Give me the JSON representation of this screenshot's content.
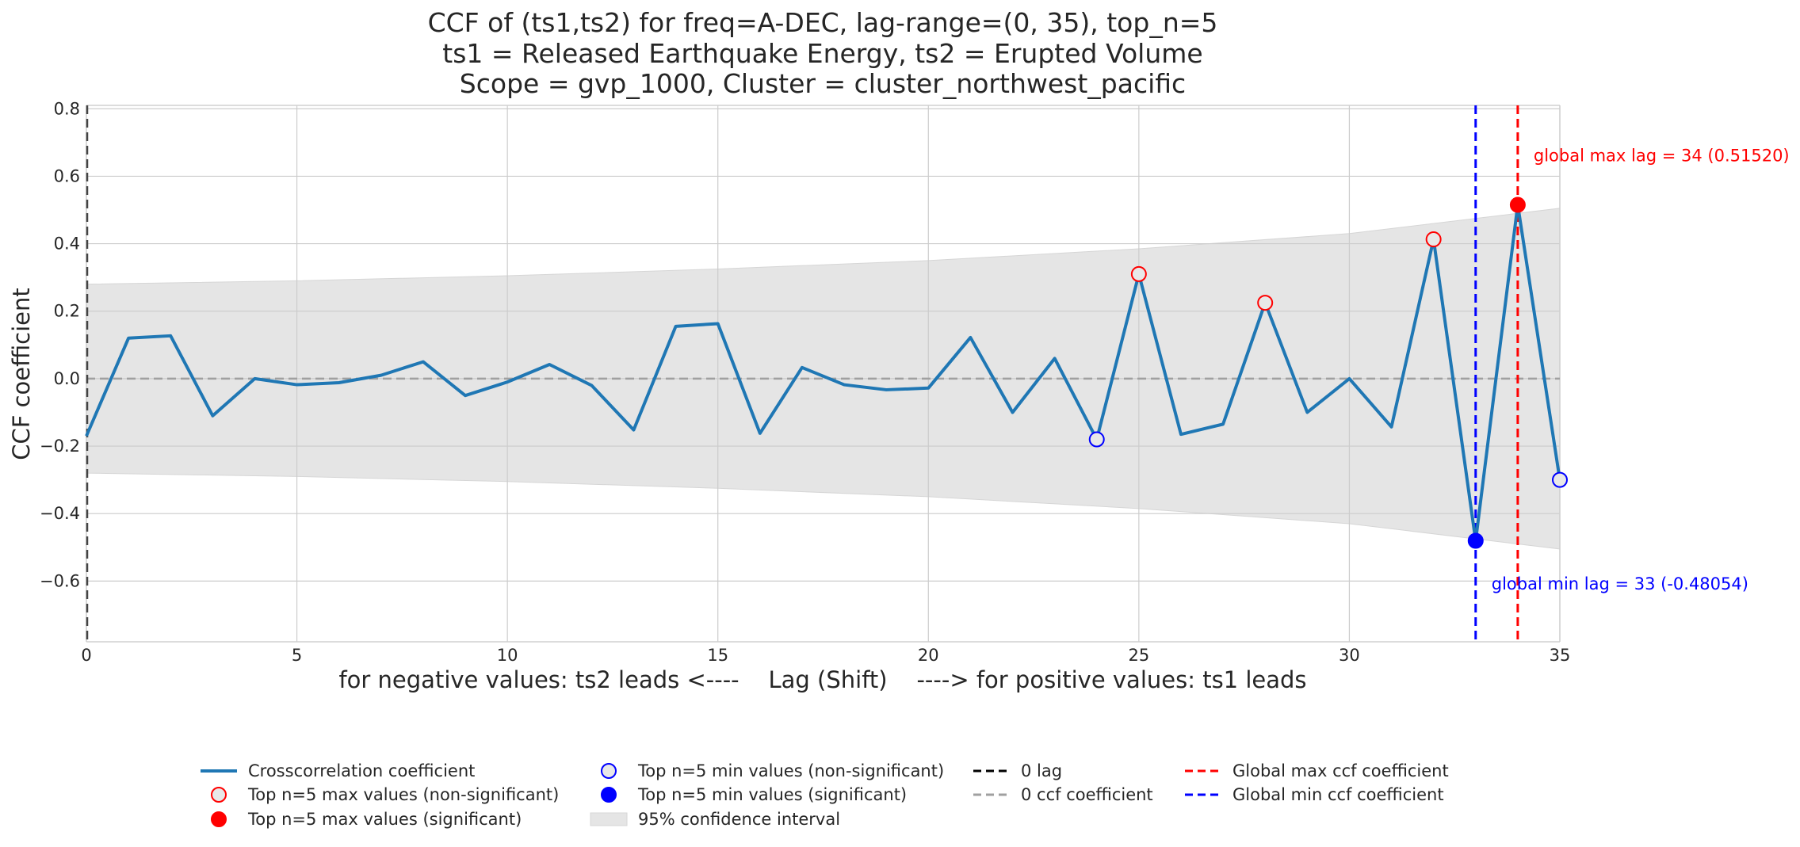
{
  "chart_data": {
    "type": "line",
    "title": [
      "CCF of (ts1,ts2) for freq=A-DEC, lag-range=(0, 35), top_n=5",
      "ts1 = Released Earthquake Energy, ts2 = Erupted Volume",
      "Scope = gvp_1000, Cluster = cluster_northwest_pacific"
    ],
    "xlabel": "for negative values: ts2 leads <----    Lag (Shift)    ----> for positive values: ts1 leads",
    "ylabel": "CCF coefficient",
    "xlim": [
      0,
      35
    ],
    "ylim": [
      -0.78,
      0.81
    ],
    "x_ticks": [
      0,
      5,
      10,
      15,
      20,
      25,
      30,
      35
    ],
    "x_tick_labels": [
      "0",
      "5",
      "10",
      "15",
      "20",
      "25",
      "30",
      "35"
    ],
    "y_ticks": [
      -0.6,
      -0.4,
      -0.2,
      0.0,
      0.2,
      0.4,
      0.6,
      0.8
    ],
    "y_tick_labels": [
      "−0.6",
      "−0.4",
      "−0.2",
      "0.0",
      "0.2",
      "0.4",
      "0.6",
      "0.8"
    ],
    "grid": true,
    "series": [
      {
        "name": "Crosscorrelation coefficient",
        "color": "#1f77b4",
        "x": [
          0,
          1,
          2,
          3,
          4,
          5,
          6,
          7,
          8,
          9,
          10,
          11,
          12,
          13,
          14,
          15,
          16,
          17,
          18,
          19,
          20,
          21,
          22,
          23,
          24,
          25,
          26,
          27,
          28,
          29,
          30,
          31,
          32,
          33,
          34,
          35
        ],
        "values": [
          -0.17,
          0.12,
          0.127,
          -0.11,
          0.0,
          -0.018,
          -0.012,
          0.01,
          0.05,
          -0.05,
          -0.01,
          0.042,
          -0.02,
          -0.152,
          0.155,
          0.163,
          -0.162,
          0.033,
          -0.018,
          -0.033,
          -0.028,
          0.122,
          -0.1,
          0.06,
          -0.18,
          0.31,
          -0.165,
          -0.135,
          0.225,
          -0.1,
          0.0,
          -0.143,
          0.413,
          -0.48054,
          0.5152,
          -0.3
        ]
      }
    ],
    "confidence_interval": {
      "name": "95% confidence interval",
      "color": "#e5e5e5",
      "x": [
        0,
        5,
        10,
        15,
        20,
        25,
        30,
        35
      ],
      "upper": [
        0.28,
        0.29,
        0.305,
        0.325,
        0.35,
        0.385,
        0.43,
        0.505
      ],
      "lower": [
        -0.28,
        -0.29,
        -0.305,
        -0.325,
        -0.35,
        -0.385,
        -0.43,
        -0.505
      ]
    },
    "top_max_nonsignificant": {
      "name": "Top n=5 max values (non-significant)",
      "x": [
        25,
        28,
        32
      ],
      "y": [
        0.31,
        0.225,
        0.413
      ]
    },
    "top_max_significant": {
      "name": "Top n=5 max values (significant)",
      "x": [
        34
      ],
      "y": [
        0.5152
      ]
    },
    "top_min_nonsignificant": {
      "name": "Top n=5 min values (non-significant)",
      "x": [
        24,
        35
      ],
      "y": [
        -0.18,
        -0.3
      ]
    },
    "top_min_significant": {
      "name": "Top n=5 min values (significant)",
      "x": [
        33
      ],
      "y": [
        -0.48054
      ]
    },
    "zero_lag": {
      "name": "0 lag",
      "x": 0
    },
    "zero_ccf": {
      "name": "0 ccf coefficient",
      "y": 0
    },
    "global_max": {
      "name": "Global max ccf coefficient",
      "lag": 34,
      "value": 0.5152,
      "annotation": "global max lag = 34 (0.51520)"
    },
    "global_min": {
      "name": "Global min ccf coefficient",
      "lag": 33,
      "value": -0.48054,
      "annotation": "global min lag = 33 (-0.48054)"
    },
    "legend_placement": "bottom-center",
    "colors": {
      "line": "#1f77b4",
      "max_marker": "#ff0000",
      "min_marker": "#0000ff",
      "ci_fill": "#e5e5e5",
      "grid": "#cccccc",
      "zero_line": "#a0a0a0"
    }
  },
  "legend": [
    [
      {
        "label": "Crosscorrelation coefficient",
        "symbol": "line-blue"
      },
      {
        "label": "Top n=5 max values (non-significant)",
        "symbol": "circle-red-open"
      },
      {
        "label": "Top n=5 max values (significant)",
        "symbol": "circle-red-filled"
      }
    ],
    [
      {
        "label": "Top n=5 min values (non-significant)",
        "symbol": "circle-blue-open"
      },
      {
        "label": "Top n=5 min values (significant)",
        "symbol": "circle-blue-filled"
      },
      {
        "label": "95% confidence interval",
        "symbol": "ci-patch"
      }
    ],
    [
      {
        "label": "0 lag",
        "symbol": "dash-black"
      },
      {
        "label": "0 ccf coefficient",
        "symbol": "dash-gray"
      }
    ],
    [
      {
        "label": "Global max ccf coefficient",
        "symbol": "dash-red"
      },
      {
        "label": "Global min ccf coefficient",
        "symbol": "dash-blue"
      }
    ]
  ]
}
